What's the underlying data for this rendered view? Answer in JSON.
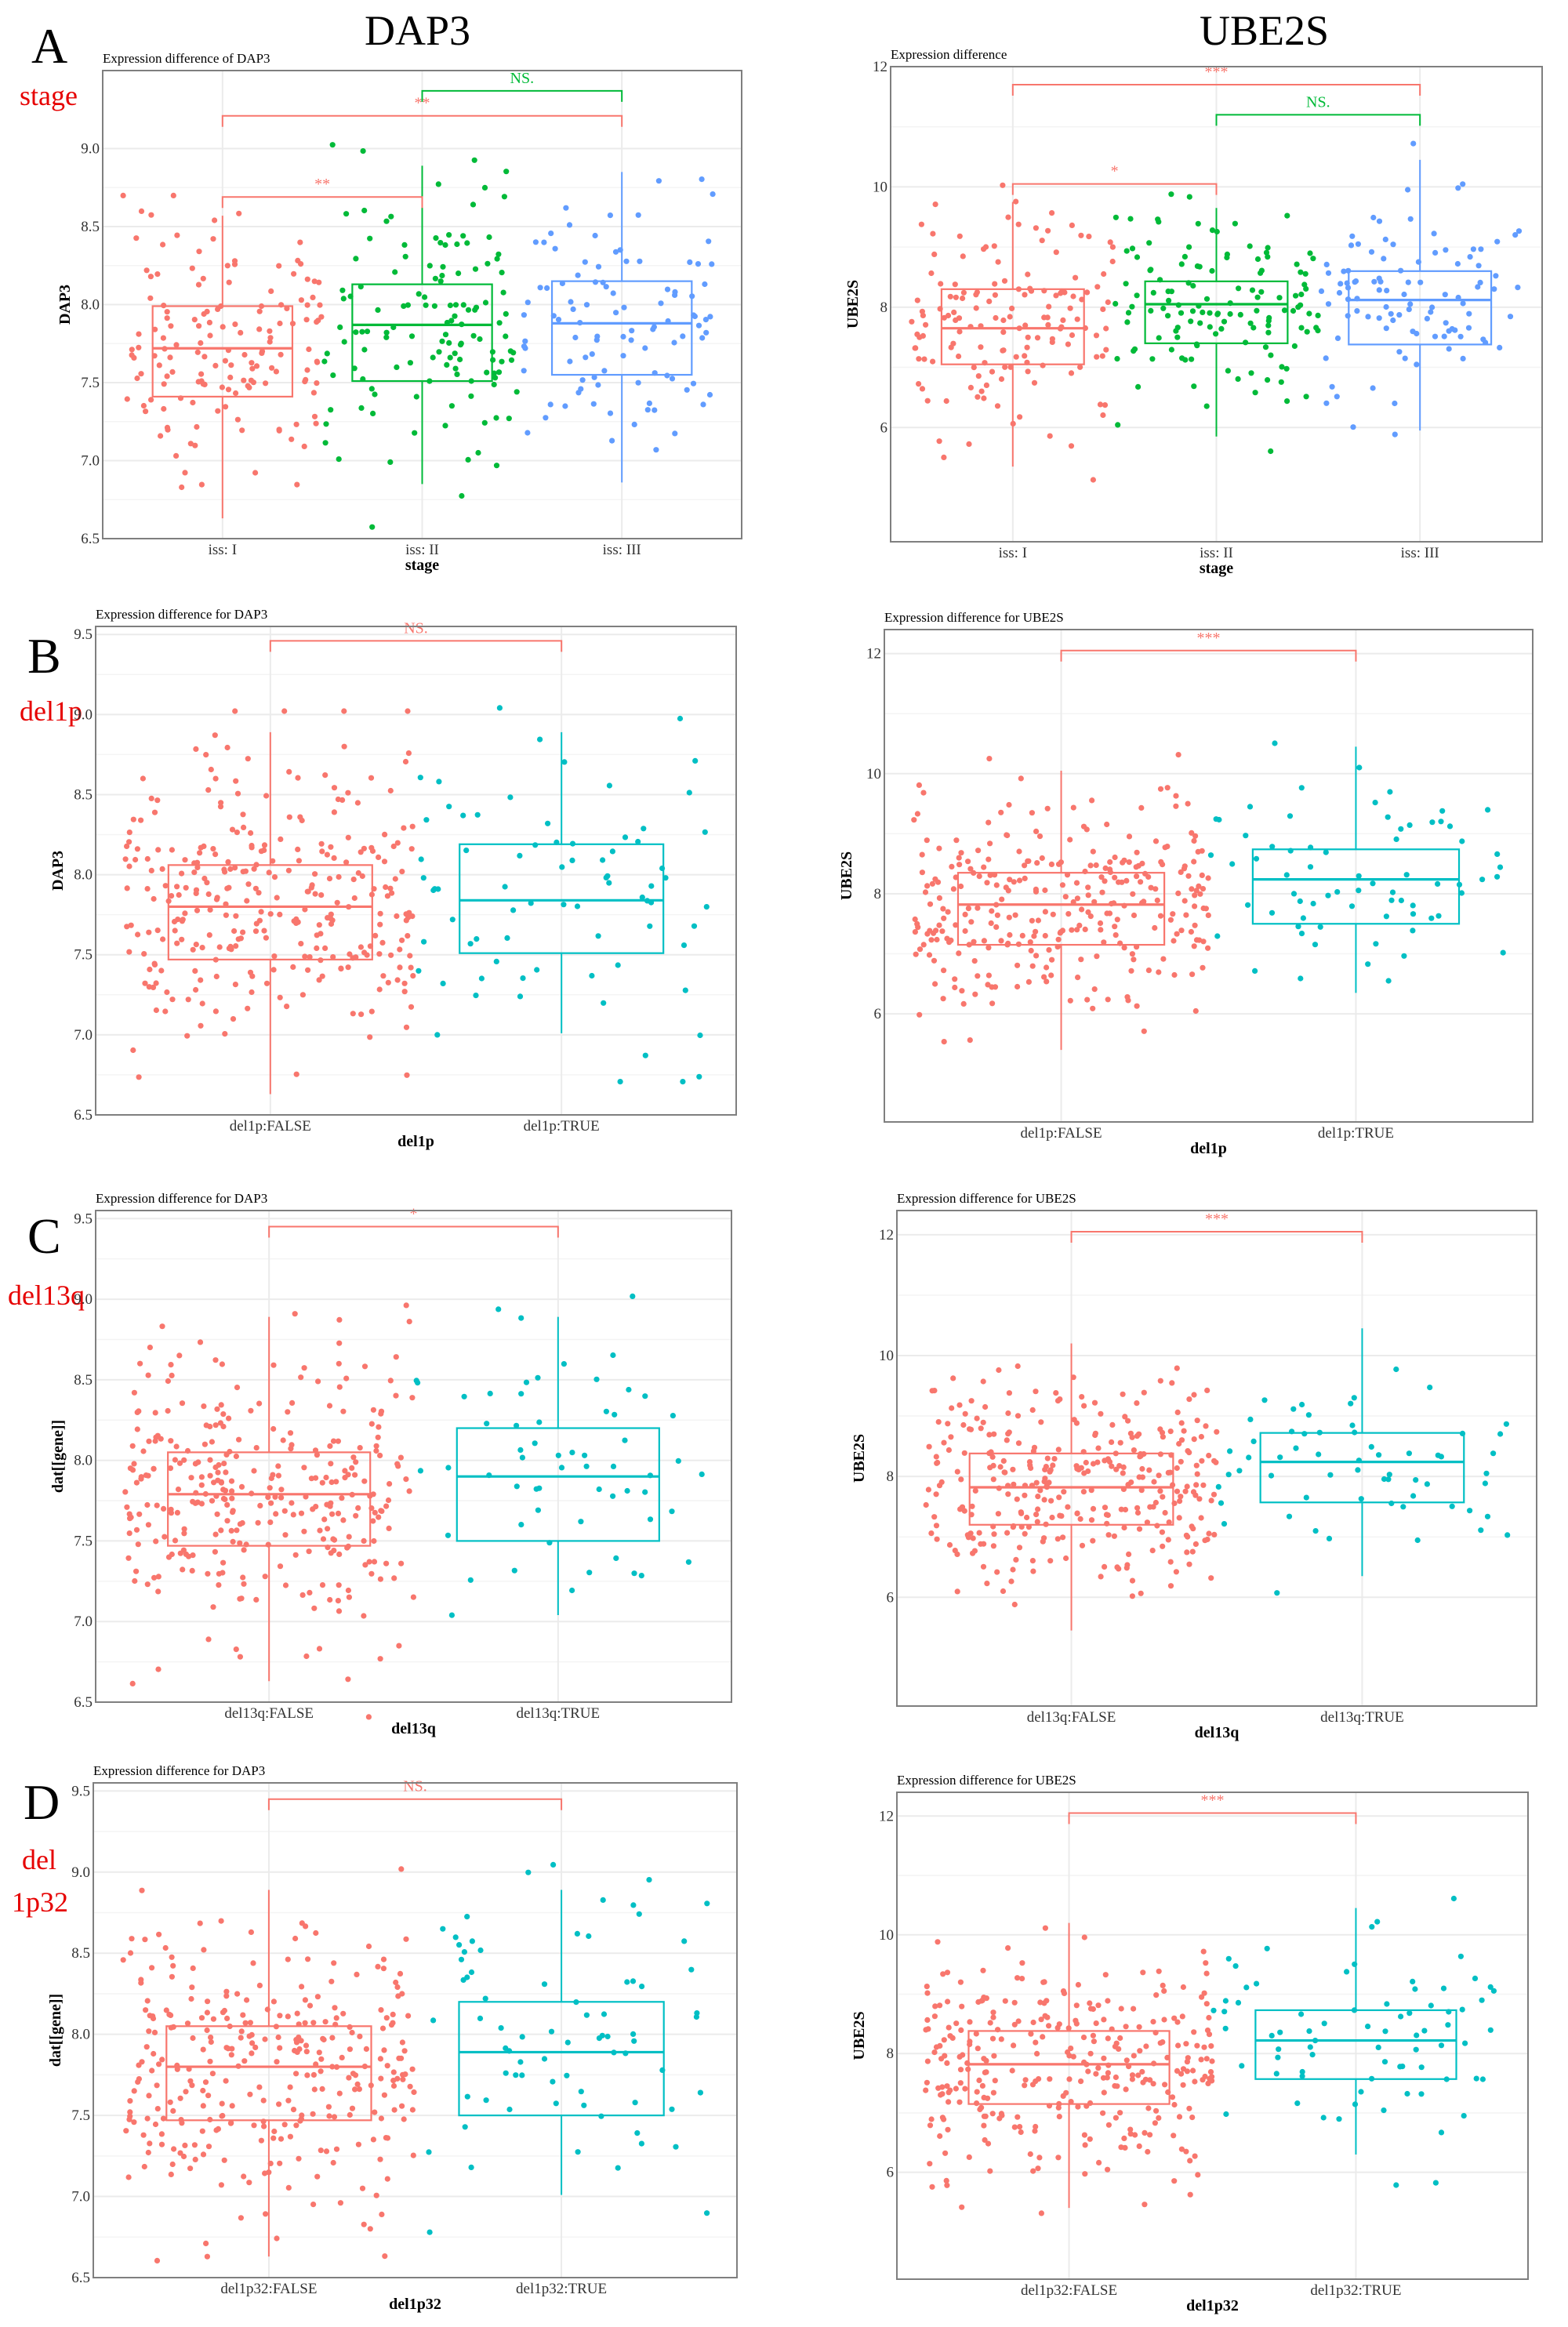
{
  "column_titles": [
    "DAP3",
    "UBE2S"
  ],
  "rows": [
    {
      "letter": "A",
      "tag": "stage"
    },
    {
      "letter": "B",
      "tag": "del1p"
    },
    {
      "letter": "C",
      "tag": "del13q"
    },
    {
      "letter": "D",
      "tag": "del 1p32"
    }
  ],
  "colors": {
    "red": "#F8766D",
    "green": "#00BA38",
    "blue": "#619CFF",
    "teal": "#00BFC4",
    "grid": "#EBEBEB",
    "frame": "#7F7F7F"
  },
  "chart_data": [
    {
      "id": "A-DAP3",
      "type": "box+jitter",
      "title": "Expression difference of DAP3",
      "xlabel": "stage",
      "ylabel": "DAP3",
      "ylim": [
        6.5,
        9.5
      ],
      "yticks": [
        6.5,
        7.0,
        7.5,
        8.0,
        8.5,
        9.0
      ],
      "yticklabels": [
        "6.5",
        "7.0",
        "7.5",
        "8.0",
        "8.5",
        "9.0"
      ],
      "categories": [
        "iss: I",
        "iss: II",
        "iss: III"
      ],
      "groups": [
        {
          "name": "iss: I",
          "color": "red",
          "n": 150,
          "q1": 7.41,
          "median": 7.72,
          "q3": 7.99,
          "whisker_low": 6.63,
          "whisker_high": 8.57
        },
        {
          "name": "iss: II",
          "color": "green",
          "n": 130,
          "q1": 7.51,
          "median": 7.87,
          "q3": 8.13,
          "whisker_low": 6.85,
          "whisker_high": 8.89
        },
        {
          "name": "iss: III",
          "color": "blue",
          "n": 100,
          "q1": 7.55,
          "median": 7.88,
          "q3": 8.15,
          "whisker_low": 6.86,
          "whisker_high": 8.85
        }
      ],
      "comparisons": [
        {
          "from": 0,
          "to": 1,
          "label": "**",
          "color": "red",
          "y": 8.69
        },
        {
          "from": 0,
          "to": 2,
          "label": "**",
          "color": "red",
          "y": 9.21
        },
        {
          "from": 1,
          "to": 2,
          "label": "NS.",
          "color": "green",
          "y": 9.37
        }
      ]
    },
    {
      "id": "A-UBE2S",
      "type": "box+jitter",
      "title": "Expression difference",
      "xlabel": "stage",
      "ylabel": "UBE2S",
      "ylim": [
        4.1,
        12.0
      ],
      "yticks": [
        6,
        8,
        10,
        12
      ],
      "yticklabels": [
        "6",
        "8",
        "10",
        "12"
      ],
      "categories": [
        "iss: I",
        "iss: II",
        "iss: III"
      ],
      "groups": [
        {
          "name": "iss: I",
          "color": "red",
          "n": 150,
          "q1": 7.05,
          "median": 7.65,
          "q3": 8.3,
          "whisker_low": 5.35,
          "whisker_high": 9.75
        },
        {
          "name": "iss: II",
          "color": "green",
          "n": 130,
          "q1": 7.4,
          "median": 8.05,
          "q3": 8.43,
          "whisker_low": 5.85,
          "whisker_high": 9.65
        },
        {
          "name": "iss: III",
          "color": "blue",
          "n": 100,
          "q1": 7.38,
          "median": 8.12,
          "q3": 8.6,
          "whisker_low": 5.95,
          "whisker_high": 10.45
        }
      ],
      "comparisons": [
        {
          "from": 0,
          "to": 1,
          "label": "*",
          "color": "red",
          "y": 10.05
        },
        {
          "from": 0,
          "to": 2,
          "label": "***",
          "color": "red",
          "y": 11.7
        },
        {
          "from": 1,
          "to": 2,
          "label": "NS.",
          "color": "green",
          "y": 11.2
        }
      ]
    },
    {
      "id": "B-DAP3",
      "type": "box+jitter",
      "title": "Expression difference for DAP3",
      "xlabel": "del1p",
      "ylabel": "DAP3",
      "ylim": [
        6.5,
        9.55
      ],
      "yticks": [
        6.5,
        7.0,
        7.5,
        8.0,
        8.5,
        9.0,
        9.5
      ],
      "yticklabels": [
        "6.5",
        "7.0",
        "7.5",
        "8.0",
        "8.5",
        "9.0",
        "9.5"
      ],
      "categories": [
        "del1p:FALSE",
        "del1p:TRUE"
      ],
      "groups": [
        {
          "name": "del1p:FALSE",
          "color": "red",
          "n": 300,
          "q1": 7.47,
          "median": 7.8,
          "q3": 8.06,
          "whisker_low": 6.63,
          "whisker_high": 8.89
        },
        {
          "name": "del1p:TRUE",
          "color": "teal",
          "n": 75,
          "q1": 7.51,
          "median": 7.84,
          "q3": 8.19,
          "whisker_low": 7.01,
          "whisker_high": 8.89
        }
      ],
      "comparisons": [
        {
          "from": 0,
          "to": 1,
          "label": "NS.",
          "color": "red",
          "y": 9.46
        }
      ]
    },
    {
      "id": "B-UBE2S",
      "type": "box+jitter",
      "title": "Expression difference for UBE2S",
      "xlabel": "del1p",
      "ylabel": "UBE2S",
      "ylim": [
        4.2,
        12.4
      ],
      "yticks": [
        6,
        8,
        10,
        12
      ],
      "yticklabels": [
        "6",
        "8",
        "10",
        "12"
      ],
      "categories": [
        "del1p:FALSE",
        "del1p:TRUE"
      ],
      "groups": [
        {
          "name": "del1p:FALSE",
          "color": "red",
          "n": 300,
          "q1": 7.15,
          "median": 7.82,
          "q3": 8.35,
          "whisker_low": 5.4,
          "whisker_high": 10.05
        },
        {
          "name": "del1p:TRUE",
          "color": "teal",
          "n": 70,
          "q1": 7.5,
          "median": 8.24,
          "q3": 8.74,
          "whisker_low": 6.35,
          "whisker_high": 10.45
        }
      ],
      "comparisons": [
        {
          "from": 0,
          "to": 1,
          "label": "***",
          "color": "red",
          "y": 12.05
        }
      ]
    },
    {
      "id": "C-DAP3",
      "type": "box+jitter",
      "title": "Expression difference for DAP3",
      "xlabel": "del13q",
      "ylabel": "dat[[gene]]",
      "ylim": [
        6.5,
        9.55
      ],
      "yticks": [
        6.5,
        7.0,
        7.5,
        8.0,
        8.5,
        9.0,
        9.5
      ],
      "yticklabels": [
        "6.5",
        "7.0",
        "7.5",
        "8.0",
        "8.5",
        "9.0",
        "9.5"
      ],
      "categories": [
        "del13q:FALSE",
        "del13q:TRUE"
      ],
      "groups": [
        {
          "name": "del13q:FALSE",
          "color": "red",
          "n": 320,
          "q1": 7.47,
          "median": 7.79,
          "q3": 8.05,
          "whisker_low": 6.63,
          "whisker_high": 8.89
        },
        {
          "name": "del13q:TRUE",
          "color": "teal",
          "n": 60,
          "q1": 7.5,
          "median": 7.9,
          "q3": 8.2,
          "whisker_low": 7.04,
          "whisker_high": 8.89
        }
      ],
      "comparisons": [
        {
          "from": 0,
          "to": 1,
          "label": "*",
          "color": "red",
          "y": 9.45
        }
      ]
    },
    {
      "id": "C-UBE2S",
      "type": "box+jitter",
      "title": "Expression difference for UBE2S",
      "xlabel": "del13q",
      "ylabel": "UBE2S",
      "ylim": [
        4.2,
        12.4
      ],
      "yticks": [
        6,
        8,
        10,
        12
      ],
      "yticklabels": [
        "6",
        "8",
        "10",
        "12"
      ],
      "categories": [
        "del13q:FALSE",
        "del13q:TRUE"
      ],
      "groups": [
        {
          "name": "del13q:FALSE",
          "color": "red",
          "n": 320,
          "q1": 7.2,
          "median": 7.82,
          "q3": 8.38,
          "whisker_low": 5.45,
          "whisker_high": 10.2
        },
        {
          "name": "del13q:TRUE",
          "color": "teal",
          "n": 60,
          "q1": 7.57,
          "median": 8.24,
          "q3": 8.72,
          "whisker_low": 6.35,
          "whisker_high": 10.45
        }
      ],
      "comparisons": [
        {
          "from": 0,
          "to": 1,
          "label": "***",
          "color": "red",
          "y": 12.05
        }
      ]
    },
    {
      "id": "D-DAP3",
      "type": "box+jitter",
      "title": "Expression difference for DAP3",
      "xlabel": "del1p32",
      "ylabel": "dat[[gene]]",
      "ylim": [
        6.5,
        9.55
      ],
      "yticks": [
        6.5,
        7.0,
        7.5,
        8.0,
        8.5,
        9.0,
        9.5
      ],
      "yticklabels": [
        "6.5",
        "7.0",
        "7.5",
        "8.0",
        "8.5",
        "9.0",
        "9.5"
      ],
      "categories": [
        "del1p32:FALSE",
        "del1p32:TRUE"
      ],
      "groups": [
        {
          "name": "del1p32:FALSE",
          "color": "red",
          "n": 310,
          "q1": 7.47,
          "median": 7.8,
          "q3": 8.05,
          "whisker_low": 6.63,
          "whisker_high": 8.89
        },
        {
          "name": "del1p32:TRUE",
          "color": "teal",
          "n": 75,
          "q1": 7.5,
          "median": 7.89,
          "q3": 8.2,
          "whisker_low": 7.01,
          "whisker_high": 8.89
        }
      ],
      "comparisons": [
        {
          "from": 0,
          "to": 1,
          "label": "NS.",
          "color": "red",
          "y": 9.45
        }
      ]
    },
    {
      "id": "D-UBE2S",
      "type": "box+jitter",
      "title": "Expression difference for UBE2S",
      "xlabel": "del1p32",
      "ylabel": "UBE2S",
      "ylim": [
        4.2,
        12.4
      ],
      "yticks": [
        6,
        8,
        10,
        12
      ],
      "yticklabels": [
        "6",
        "8",
        "10",
        "12"
      ],
      "categories": [
        "del1p32:FALSE",
        "del1p32:TRUE"
      ],
      "groups": [
        {
          "name": "del1p32:FALSE",
          "color": "red",
          "n": 310,
          "q1": 7.15,
          "median": 7.82,
          "q3": 8.38,
          "whisker_low": 5.4,
          "whisker_high": 10.2
        },
        {
          "name": "del1p32:TRUE",
          "color": "teal",
          "n": 75,
          "q1": 7.57,
          "median": 8.22,
          "q3": 8.73,
          "whisker_low": 6.3,
          "whisker_high": 10.45
        }
      ],
      "comparisons": [
        {
          "from": 0,
          "to": 1,
          "label": "***",
          "color": "red",
          "y": 12.05
        }
      ]
    }
  ]
}
